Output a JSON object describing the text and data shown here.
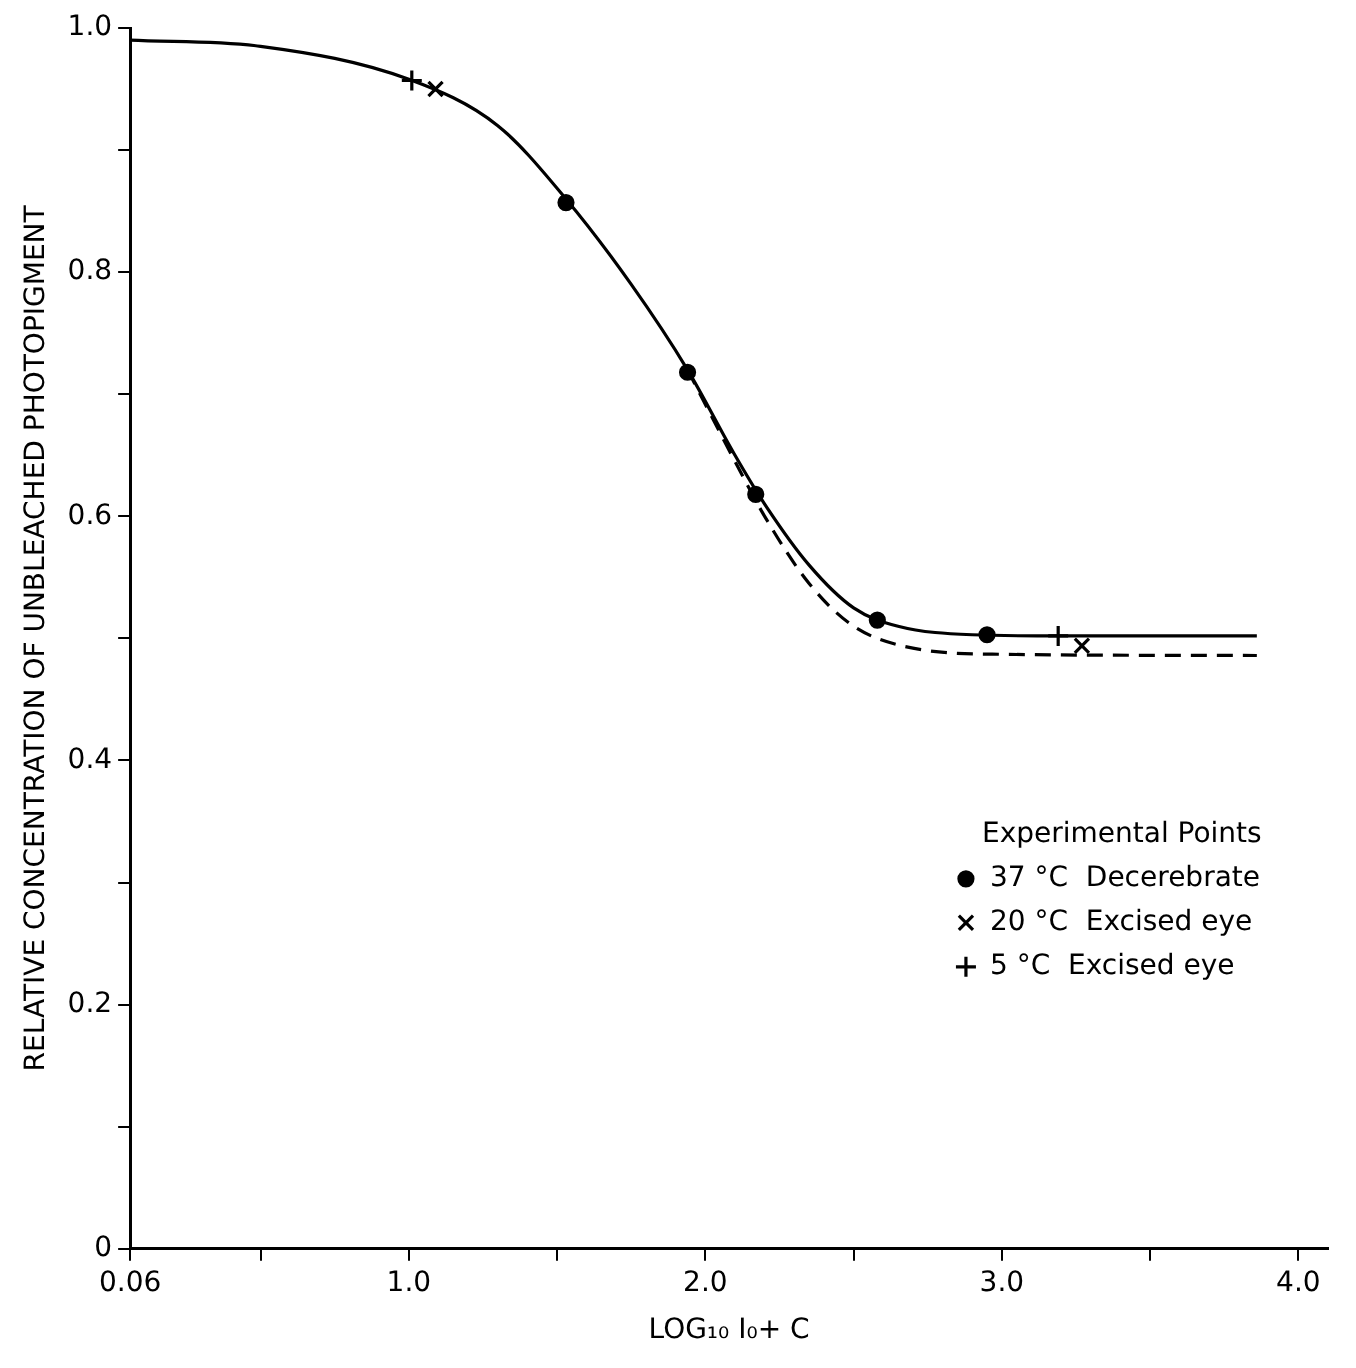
{
  "chart_data": {
    "type": "scatter",
    "xlabel": "LOG₁₀ I₀+ C",
    "ylabel": "RELATIVE CONCENTRATION OF UNBLEACHED PHOTOPIGMENT",
    "legend_title": "Experimental Points",
    "legend": "bottom right",
    "grid": false,
    "xlim": [
      0.06,
      4.1
    ],
    "xticks": [
      0.06,
      {
        "value": 0.5,
        "label": null
      },
      {
        "value": 1,
        "label": "1.0"
      },
      {
        "value": 1.5,
        "label": null
      },
      {
        "value": 2,
        "label": "2.0"
      },
      {
        "value": 2.5,
        "label": null
      },
      {
        "value": 3,
        "label": "3.0"
      },
      {
        "value": 3.5,
        "label": null
      },
      {
        "value": 4,
        "label": "4.0"
      }
    ],
    "ylim": [
      0,
      1
    ],
    "yticks": [
      0,
      {
        "value": 0.1,
        "label": null
      },
      0.2,
      {
        "value": 0.3,
        "label": null
      },
      0.4,
      {
        "value": 0.5,
        "label": null
      },
      0.6,
      {
        "value": 0.7,
        "label": null
      },
      0.8,
      {
        "value": 0.9,
        "label": null
      },
      {
        "value": 1,
        "label": "1.0"
      }
    ],
    "series": [
      {
        "type": "line",
        "color": "#000000",
        "marker": "none",
        "line_style": "solid",
        "x": [
          0.06,
          0.5,
          1.0,
          1.3,
          1.53,
          1.75,
          1.94,
          2.1,
          2.2,
          2.35,
          2.5,
          2.65,
          2.9,
          3.2,
          3.86
        ],
        "values": [
          0.99,
          0.985,
          0.958,
          0.92,
          0.86,
          0.79,
          0.72,
          0.65,
          0.61,
          0.56,
          0.525,
          0.51,
          0.503,
          0.502,
          0.502
        ]
      },
      {
        "type": "line",
        "color": "#000000",
        "marker": "none",
        "line_style": "dashed",
        "x": [
          1.94,
          2.1,
          2.2,
          2.35,
          2.5,
          2.7,
          3.0,
          3.86
        ],
        "values": [
          0.72,
          0.645,
          0.6,
          0.545,
          0.51,
          0.492,
          0.487,
          0.486
        ]
      },
      {
        "name": "37 °C  Decerebrate",
        "color": "#000000",
        "marker": "circle",
        "x": [
          1.53,
          1.94,
          2.17,
          2.58,
          2.95
        ],
        "values": [
          0.857,
          0.718,
          0.618,
          0.515,
          0.503
        ]
      },
      {
        "name": "20 °C  Excised eye",
        "color": "#000000",
        "marker": "cross",
        "x": [
          1.09,
          3.27
        ],
        "values": [
          0.95,
          0.494
        ]
      },
      {
        "name": "5 °C  Excised eye",
        "color": "#000000",
        "marker": "plus",
        "x": [
          1.01,
          3.19
        ],
        "values": [
          0.957,
          0.502
        ]
      }
    ]
  }
}
